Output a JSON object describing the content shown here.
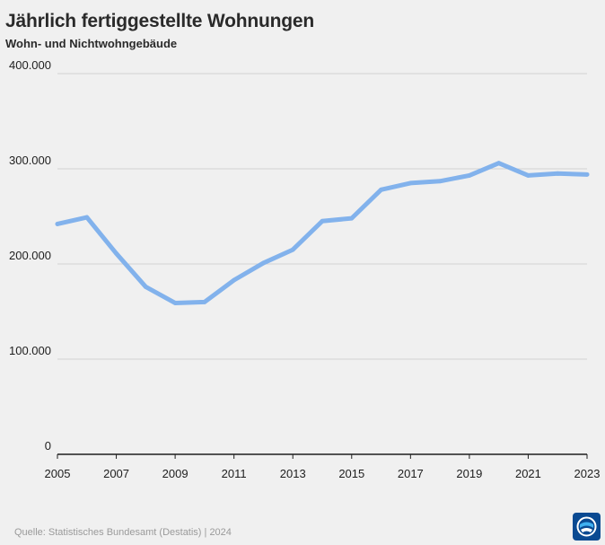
{
  "header": {
    "title": "Jährlich fertiggestellte Wohnungen",
    "subtitle": "Wohn- und Nichtwohngebäude"
  },
  "footer": {
    "source": "Quelle: Statistisches Bundesamt (Destatis) | 2024"
  },
  "colors": {
    "line": "#82b2ec",
    "grid": "#d2d2d2",
    "axis": "#1e1e1e",
    "background": "#f0f0f0",
    "logo": "#0a4a92"
  },
  "chart_data": {
    "type": "line",
    "title": "Jährlich fertiggestellte Wohnungen",
    "subtitle": "Wohn- und Nichtwohngebäude",
    "xlabel": "",
    "ylabel": "",
    "x": [
      2005,
      2006,
      2007,
      2008,
      2009,
      2010,
      2011,
      2012,
      2013,
      2014,
      2015,
      2016,
      2017,
      2018,
      2019,
      2020,
      2021,
      2022,
      2023
    ],
    "series": [
      {
        "values": [
          242000,
          249000,
          211000,
          176000,
          159000,
          160000,
          183000,
          201000,
          215000,
          245000,
          248000,
          278000,
          285000,
          287000,
          293000,
          306000,
          293000,
          295000,
          294000
        ]
      }
    ],
    "xticks": [
      "2005",
      "2007",
      "2009",
      "2011",
      "2013",
      "2015",
      "2017",
      "2019",
      "2021",
      "2023"
    ],
    "yticks": [
      "0",
      "100.000",
      "200.000",
      "300.000",
      "400.000"
    ],
    "xlim": [
      2005,
      2023
    ],
    "ylim": [
      0,
      400000
    ],
    "grid": true,
    "legend": "none"
  }
}
